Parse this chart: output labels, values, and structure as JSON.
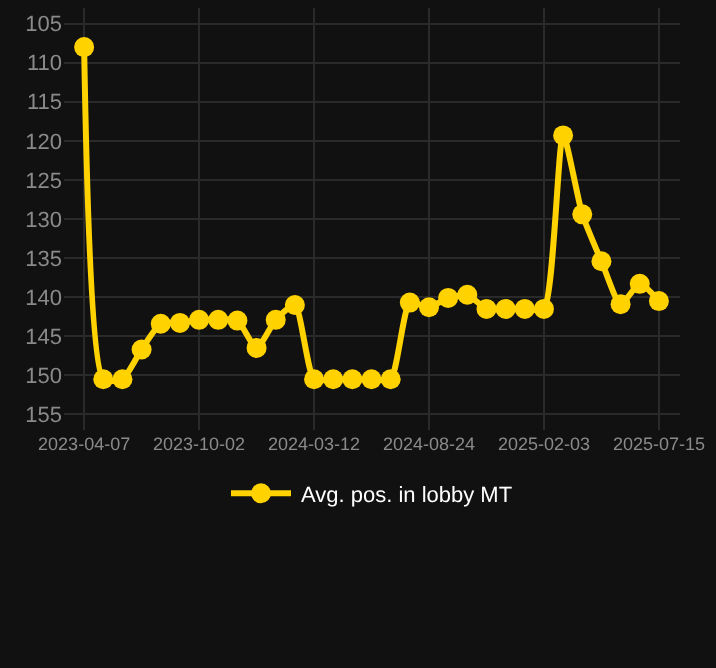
{
  "chart_data": {
    "type": "line",
    "categories": [
      "2023-04-07",
      null,
      null,
      null,
      null,
      null,
      "2023-10-02",
      null,
      null,
      null,
      null,
      null,
      "2024-03-12",
      null,
      null,
      null,
      null,
      null,
      "2024-08-24",
      null,
      null,
      null,
      null,
      null,
      "2025-02-03",
      null,
      null,
      null,
      null,
      null,
      "2025-07-15"
    ],
    "series": [
      {
        "name": "Avg. pos. in lobby MT",
        "color": "#ffd200",
        "values": [
          108,
          150.5,
          150.5,
          146.7,
          143.4,
          143.3,
          142.9,
          142.9,
          143,
          146.5,
          142.9,
          141,
          150.5,
          150.5,
          150.5,
          150.5,
          150.5,
          140.7,
          141.3,
          140.1,
          139.7,
          141.5,
          141.5,
          141.5,
          141.5,
          119.3,
          129.4,
          135.4,
          140.9,
          138.3,
          140.5
        ]
      }
    ],
    "ylim": [
      157,
      103
    ],
    "yticks": [
      105,
      110,
      115,
      120,
      125,
      130,
      135,
      140,
      145,
      150,
      155
    ],
    "grid": true,
    "legend": "bottom",
    "marker": "circle",
    "line_style": "solid"
  }
}
